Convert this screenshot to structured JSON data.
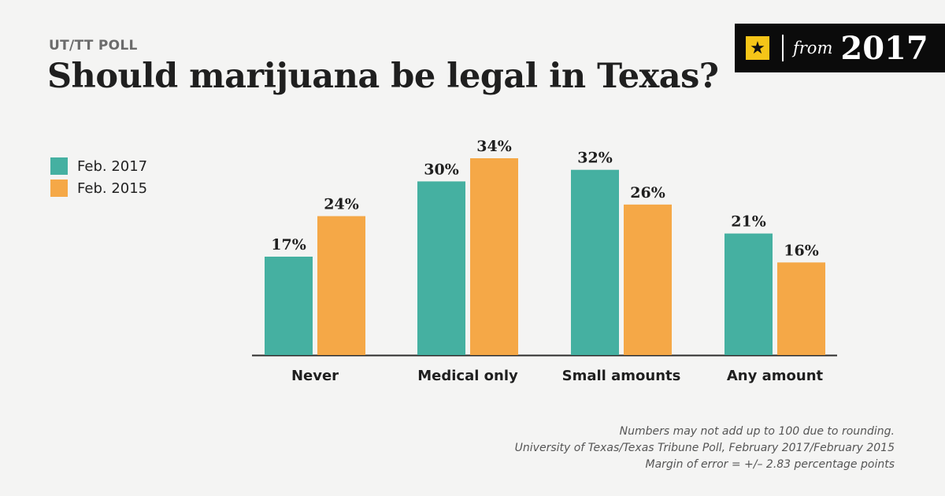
{
  "header": {
    "kicker": "UT/TT POLL",
    "title": "Should marijuana be legal in Texas?"
  },
  "badge": {
    "icon": "star-icon",
    "from": "from",
    "year": "2017"
  },
  "legend": [
    {
      "label": "Feb. 2017",
      "color": "#45b0a1"
    },
    {
      "label": "Feb. 2015",
      "color": "#f5a847"
    }
  ],
  "chart_data": {
    "type": "bar",
    "categories": [
      "Never",
      "Medical only",
      "Small amounts",
      "Any amount"
    ],
    "series": [
      {
        "name": "Feb. 2017",
        "values": [
          17,
          30,
          32,
          21
        ],
        "labels": [
          "17%",
          "30%",
          "32%",
          "21%"
        ],
        "color": "#45b0a1"
      },
      {
        "name": "Feb. 2015",
        "values": [
          24,
          34,
          26,
          16
        ],
        "labels": [
          "24%",
          "34%",
          "26%",
          "16%"
        ],
        "color": "#f5a847"
      }
    ],
    "title": "Should marijuana be legal in Texas?",
    "xlabel": "",
    "ylabel": "",
    "ylim": [
      0,
      34
    ],
    "grid": false,
    "legend_position": "left"
  },
  "notes": [
    "Numbers may not add up to 100 due to rounding.",
    "University of Texas/Texas Tribune Poll, February 2017/February 2015",
    "Margin of error = +/– 2.83 percentage points"
  ]
}
